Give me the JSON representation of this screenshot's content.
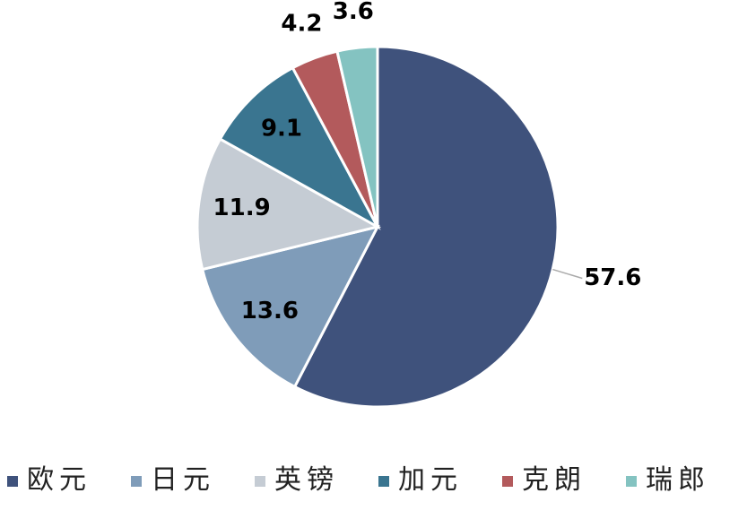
{
  "chart_data": {
    "type": "pie",
    "categories": [
      "欧元",
      "日元",
      "英镑",
      "加元",
      "克朗",
      "瑞郎"
    ],
    "values": [
      57.6,
      13.6,
      11.9,
      9.1,
      4.2,
      3.6
    ],
    "colors": [
      "#3f527c",
      "#7f9cb9",
      "#c5ccd4",
      "#3a7590",
      "#b35a5c",
      "#84c3c1"
    ],
    "legend": "bottom"
  }
}
